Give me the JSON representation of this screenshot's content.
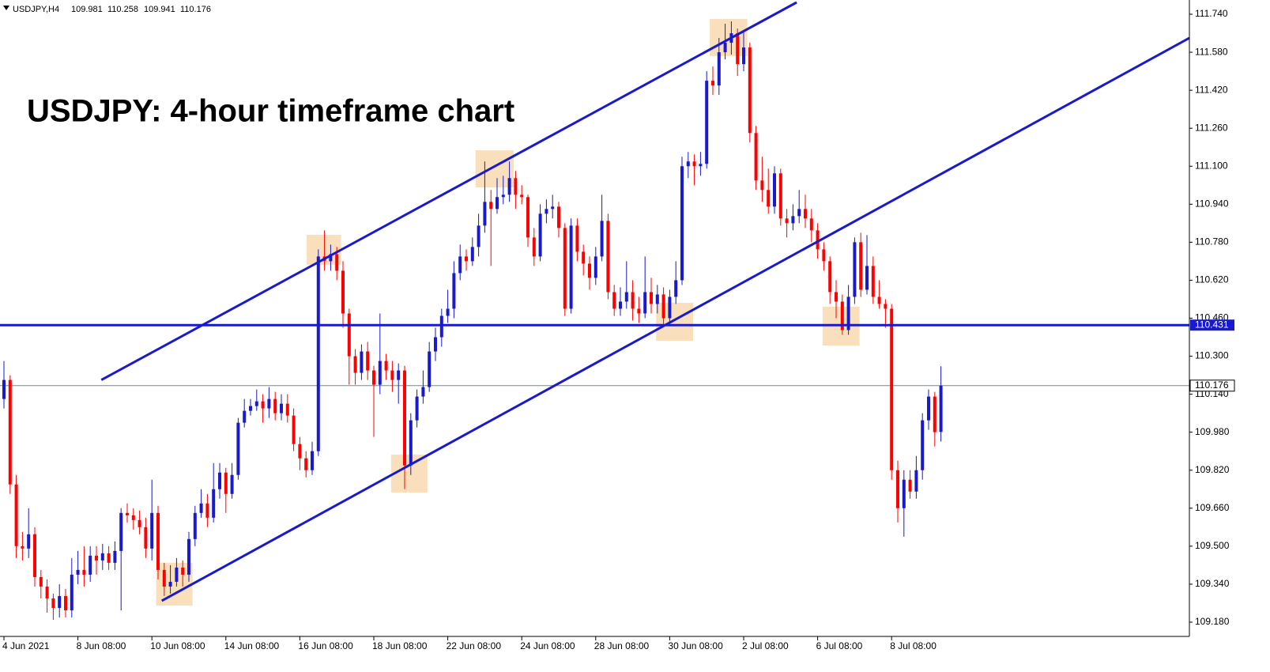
{
  "chart_data": {
    "type": "candlestick",
    "symbol": "USDJPY,H4",
    "title": "USDJPY: 4-hour timeframe chart",
    "up_color": "#1a1acd",
    "down_color": "#ff0000",
    "line_color": "#1a1acd",
    "ylim": [
      109.12,
      111.8
    ],
    "yticks": [
      {
        "value": 111.74,
        "label": "111.740"
      },
      {
        "value": 111.58,
        "label": "111.580"
      },
      {
        "value": 111.42,
        "label": "111.420"
      },
      {
        "value": 111.26,
        "label": "111.260"
      },
      {
        "value": 111.1,
        "label": "111.100"
      },
      {
        "value": 110.94,
        "label": "110.940"
      },
      {
        "value": 110.78,
        "label": "110.780"
      },
      {
        "value": 110.62,
        "label": "110.620"
      },
      {
        "value": 110.46,
        "label": "110.460"
      },
      {
        "value": 110.3,
        "label": "110.300"
      },
      {
        "value": 110.14,
        "label": "110.140"
      },
      {
        "value": 109.98,
        "label": "109.980"
      },
      {
        "value": 109.82,
        "label": "109.820"
      },
      {
        "value": 109.66,
        "label": "109.660"
      },
      {
        "value": 109.5,
        "label": "109.500"
      },
      {
        "value": 109.34,
        "label": "109.340"
      },
      {
        "value": 109.18,
        "label": "109.180"
      }
    ],
    "categories": [
      "4 Jun 2021",
      null,
      null,
      null,
      null,
      null,
      null,
      null,
      null,
      null,
      null,
      null,
      "8 Jun 08:00",
      null,
      null,
      null,
      null,
      null,
      null,
      null,
      null,
      null,
      null,
      null,
      "10 Jun 08:00",
      null,
      null,
      null,
      null,
      null,
      null,
      null,
      null,
      null,
      null,
      null,
      "14 Jun 08:00",
      null,
      null,
      null,
      null,
      null,
      null,
      null,
      null,
      null,
      null,
      null,
      "16 Jun 08:00",
      null,
      null,
      null,
      null,
      null,
      null,
      null,
      null,
      null,
      null,
      null,
      "18 Jun 08:00",
      null,
      null,
      null,
      null,
      null,
      null,
      null,
      null,
      null,
      null,
      null,
      "22 Jun 08:00",
      null,
      null,
      null,
      null,
      null,
      null,
      null,
      null,
      null,
      null,
      null,
      "24 Jun 08:00",
      null,
      null,
      null,
      null,
      null,
      null,
      null,
      null,
      null,
      null,
      null,
      "28 Jun 08:00",
      null,
      null,
      null,
      null,
      null,
      null,
      null,
      null,
      null,
      null,
      null,
      "30 Jun 08:00",
      null,
      null,
      null,
      null,
      null,
      null,
      null,
      null,
      null,
      null,
      null,
      "2 Jul 08:00",
      null,
      null,
      null,
      null,
      null,
      null,
      null,
      null,
      null,
      null,
      null,
      "6 Jul 08:00",
      null,
      null,
      null,
      null,
      null,
      null,
      null,
      null,
      null,
      null,
      null,
      "8 Jul 08:00",
      null,
      null,
      null,
      null,
      null,
      null,
      null,
      null
    ],
    "ohlc": [
      [
        110.12,
        110.28,
        110.08,
        110.2
      ],
      [
        110.2,
        110.22,
        109.72,
        109.76
      ],
      [
        109.76,
        109.8,
        109.45,
        109.5
      ],
      [
        109.5,
        109.56,
        109.44,
        109.49
      ],
      [
        109.49,
        109.66,
        109.45,
        109.55
      ],
      [
        109.55,
        109.58,
        109.33,
        109.37
      ],
      [
        109.37,
        109.4,
        109.28,
        109.33
      ],
      [
        109.33,
        109.36,
        109.22,
        109.28
      ],
      [
        109.28,
        109.3,
        109.19,
        109.24
      ],
      [
        109.24,
        109.34,
        109.2,
        109.29
      ],
      [
        109.29,
        109.32,
        109.2,
        109.23
      ],
      [
        109.23,
        109.45,
        109.2,
        109.38
      ],
      [
        109.38,
        109.48,
        109.34,
        109.4
      ],
      [
        109.4,
        109.5,
        109.33,
        109.38
      ],
      [
        109.38,
        109.5,
        109.35,
        109.46
      ],
      [
        109.46,
        109.5,
        109.38,
        109.44
      ],
      [
        109.44,
        109.51,
        109.4,
        109.47
      ],
      [
        109.47,
        109.5,
        109.4,
        109.43
      ],
      [
        109.43,
        109.52,
        109.4,
        109.48
      ],
      [
        109.48,
        109.66,
        109.23,
        109.64
      ],
      [
        109.64,
        109.68,
        109.6,
        109.63
      ],
      [
        109.63,
        109.66,
        109.57,
        109.61
      ],
      [
        109.61,
        109.65,
        109.55,
        109.58
      ],
      [
        109.58,
        109.62,
        109.45,
        109.49
      ],
      [
        109.49,
        109.78,
        109.44,
        109.64
      ],
      [
        109.64,
        109.67,
        109.36,
        109.4
      ],
      [
        109.4,
        109.43,
        109.29,
        109.33
      ],
      [
        109.33,
        109.42,
        109.3,
        109.35
      ],
      [
        109.35,
        109.45,
        109.33,
        109.41
      ],
      [
        109.41,
        109.44,
        109.33,
        109.38
      ],
      [
        109.38,
        109.56,
        109.35,
        109.53
      ],
      [
        109.53,
        109.67,
        109.5,
        109.64
      ],
      [
        109.64,
        109.74,
        109.62,
        109.68
      ],
      [
        109.68,
        109.72,
        109.58,
        109.62
      ],
      [
        109.62,
        109.85,
        109.6,
        109.74
      ],
      [
        109.74,
        109.85,
        109.7,
        109.81
      ],
      [
        109.81,
        109.83,
        109.64,
        109.72
      ],
      [
        109.72,
        109.85,
        109.7,
        109.8
      ],
      [
        109.8,
        110.04,
        109.78,
        110.02
      ],
      [
        110.02,
        110.12,
        110.0,
        110.07
      ],
      [
        110.07,
        110.12,
        110.05,
        110.09
      ],
      [
        110.09,
        110.16,
        110.07,
        110.11
      ],
      [
        110.11,
        110.14,
        110.02,
        110.08
      ],
      [
        110.08,
        110.17,
        110.04,
        110.12
      ],
      [
        110.12,
        110.15,
        110.03,
        110.06
      ],
      [
        110.06,
        110.14,
        110.03,
        110.1
      ],
      [
        110.1,
        110.14,
        110.02,
        110.05
      ],
      [
        110.05,
        110.08,
        109.9,
        109.93
      ],
      [
        109.93,
        109.96,
        109.82,
        109.87
      ],
      [
        109.87,
        109.9,
        109.79,
        109.82
      ],
      [
        109.82,
        109.94,
        109.8,
        109.9
      ],
      [
        109.9,
        110.75,
        109.88,
        110.72
      ],
      [
        110.72,
        110.83,
        110.66,
        110.7
      ],
      [
        110.7,
        110.77,
        110.66,
        110.73
      ],
      [
        110.73,
        110.76,
        110.62,
        110.66
      ],
      [
        110.66,
        110.7,
        110.42,
        110.48
      ],
      [
        110.48,
        110.5,
        110.18,
        110.3
      ],
      [
        110.3,
        110.33,
        110.18,
        110.23
      ],
      [
        110.23,
        110.35,
        110.2,
        110.32
      ],
      [
        110.32,
        110.36,
        110.2,
        110.24
      ],
      [
        110.24,
        110.26,
        109.96,
        110.18
      ],
      [
        110.18,
        110.48,
        110.14,
        110.28
      ],
      [
        110.28,
        110.31,
        110.2,
        110.24
      ],
      [
        110.24,
        110.28,
        110.15,
        110.2
      ],
      [
        110.2,
        110.27,
        110.1,
        110.24
      ],
      [
        110.24,
        110.26,
        109.74,
        109.84
      ],
      [
        109.84,
        110.06,
        109.8,
        110.03
      ],
      [
        110.03,
        110.16,
        110.0,
        110.13
      ],
      [
        110.13,
        110.24,
        110.1,
        110.17
      ],
      [
        110.17,
        110.36,
        110.15,
        110.32
      ],
      [
        110.32,
        110.42,
        110.28,
        110.38
      ],
      [
        110.38,
        110.5,
        110.34,
        110.47
      ],
      [
        110.47,
        110.58,
        110.44,
        110.5
      ],
      [
        110.5,
        110.7,
        110.46,
        110.65
      ],
      [
        110.65,
        110.77,
        110.62,
        110.72
      ],
      [
        110.72,
        110.75,
        110.66,
        110.7
      ],
      [
        110.7,
        110.8,
        110.68,
        110.76
      ],
      [
        110.76,
        110.9,
        110.72,
        110.85
      ],
      [
        110.85,
        111.12,
        110.82,
        110.95
      ],
      [
        110.95,
        111.0,
        110.68,
        110.92
      ],
      [
        110.92,
        111.05,
        110.9,
        110.97
      ],
      [
        110.97,
        111.06,
        110.94,
        110.98
      ],
      [
        110.98,
        111.12,
        110.95,
        111.05
      ],
      [
        111.05,
        111.08,
        110.92,
        110.98
      ],
      [
        110.98,
        111.02,
        110.94,
        110.97
      ],
      [
        110.97,
        110.98,
        110.76,
        110.8
      ],
      [
        110.8,
        110.84,
        110.68,
        110.72
      ],
      [
        110.72,
        110.94,
        110.7,
        110.9
      ],
      [
        110.9,
        110.96,
        110.86,
        110.92
      ],
      [
        110.92,
        110.98,
        110.88,
        110.93
      ],
      [
        110.93,
        110.95,
        110.8,
        110.84
      ],
      [
        110.84,
        110.86,
        110.47,
        110.5
      ],
      [
        110.5,
        110.88,
        110.48,
        110.85
      ],
      [
        110.85,
        110.88,
        110.7,
        110.74
      ],
      [
        110.74,
        110.77,
        110.64,
        110.69
      ],
      [
        110.69,
        110.72,
        110.58,
        110.63
      ],
      [
        110.63,
        110.76,
        110.6,
        110.72
      ],
      [
        110.72,
        110.98,
        110.7,
        110.87
      ],
      [
        110.87,
        110.9,
        110.54,
        110.57
      ],
      [
        110.57,
        110.6,
        110.47,
        110.5
      ],
      [
        110.5,
        110.59,
        110.47,
        110.53
      ],
      [
        110.53,
        110.7,
        110.5,
        110.57
      ],
      [
        110.57,
        110.62,
        110.45,
        110.5
      ],
      [
        110.5,
        110.55,
        110.44,
        110.48
      ],
      [
        110.48,
        110.72,
        110.46,
        110.57
      ],
      [
        110.57,
        110.63,
        110.48,
        110.52
      ],
      [
        110.52,
        110.6,
        110.48,
        110.56
      ],
      [
        110.56,
        110.59,
        110.43,
        110.46
      ],
      [
        110.46,
        110.58,
        110.44,
        110.55
      ],
      [
        110.55,
        110.7,
        110.52,
        110.62
      ],
      [
        110.62,
        111.14,
        110.6,
        111.1
      ],
      [
        111.1,
        111.16,
        111.05,
        111.12
      ],
      [
        111.12,
        111.15,
        111.02,
        111.1
      ],
      [
        111.1,
        111.16,
        111.06,
        111.11
      ],
      [
        111.11,
        111.5,
        111.09,
        111.46
      ],
      [
        111.46,
        111.52,
        111.4,
        111.44
      ],
      [
        111.44,
        111.64,
        111.4,
        111.58
      ],
      [
        111.58,
        111.7,
        111.55,
        111.62
      ],
      [
        111.62,
        111.71,
        111.57,
        111.66
      ],
      [
        111.66,
        111.68,
        111.48,
        111.53
      ],
      [
        111.53,
        111.67,
        111.5,
        111.6
      ],
      [
        111.6,
        111.62,
        111.2,
        111.24
      ],
      [
        111.24,
        111.27,
        111.0,
        111.04
      ],
      [
        111.04,
        111.14,
        110.95,
        111.0
      ],
      [
        111.0,
        111.09,
        110.9,
        110.93
      ],
      [
        110.93,
        111.1,
        110.9,
        111.07
      ],
      [
        111.07,
        111.09,
        110.85,
        110.88
      ],
      [
        110.88,
        110.92,
        110.8,
        110.86
      ],
      [
        110.86,
        110.94,
        110.83,
        110.89
      ],
      [
        110.89,
        111.0,
        110.86,
        110.92
      ],
      [
        110.92,
        110.98,
        110.84,
        110.88
      ],
      [
        110.88,
        110.92,
        110.78,
        110.83
      ],
      [
        110.83,
        110.86,
        110.71,
        110.75
      ],
      [
        110.75,
        110.78,
        110.66,
        110.7
      ],
      [
        110.7,
        110.72,
        110.52,
        110.57
      ],
      [
        110.57,
        110.62,
        110.46,
        110.53
      ],
      [
        110.53,
        110.56,
        110.39,
        110.41
      ],
      [
        110.41,
        110.6,
        110.39,
        110.55
      ],
      [
        110.55,
        110.8,
        110.52,
        110.78
      ],
      [
        110.78,
        110.82,
        110.55,
        110.58
      ],
      [
        110.58,
        110.81,
        110.56,
        110.68
      ],
      [
        110.68,
        110.72,
        110.52,
        110.55
      ],
      [
        110.55,
        110.62,
        110.5,
        110.52
      ],
      [
        110.52,
        110.54,
        110.42,
        110.5
      ],
      [
        110.5,
        110.52,
        109.78,
        109.82
      ],
      [
        109.82,
        109.86,
        109.6,
        109.66
      ],
      [
        109.66,
        109.82,
        109.54,
        109.78
      ],
      [
        109.78,
        109.82,
        109.7,
        109.73
      ],
      [
        109.73,
        109.88,
        109.7,
        109.82
      ],
      [
        109.82,
        110.06,
        109.78,
        110.03
      ],
      [
        110.03,
        110.16,
        109.99,
        110.13
      ],
      [
        110.13,
        110.15,
        109.92,
        109.98
      ],
      [
        109.981,
        110.258,
        109.941,
        110.176
      ]
    ],
    "hline": 110.431,
    "last_price": 110.176,
    "trendlines": [
      {
        "x": [
          15.8,
          128.6
        ],
        "y": [
          110.2,
          111.79
        ]
      },
      {
        "x": [
          25.6,
          192.3
        ],
        "y": [
          109.27,
          111.64
        ]
      }
    ],
    "highlights": [
      {
        "x": [
          24.7,
          30.6
        ],
        "y": [
          109.25,
          109.43
        ]
      },
      {
        "x": [
          49.1,
          54.7
        ],
        "y": [
          110.685,
          110.811
        ]
      },
      {
        "x": [
          62.8,
          68.7
        ],
        "y": [
          109.726,
          109.886
        ]
      },
      {
        "x": [
          76.5,
          82.7
        ],
        "y": [
          111.011,
          111.167
        ]
      },
      {
        "x": [
          105.8,
          111.8
        ],
        "y": [
          110.365,
          110.525
        ]
      },
      {
        "x": [
          114.5,
          120.6
        ],
        "y": [
          111.564,
          111.72
        ]
      },
      {
        "x": [
          132.8,
          138.8
        ],
        "y": [
          110.345,
          110.508
        ]
      }
    ]
  }
}
